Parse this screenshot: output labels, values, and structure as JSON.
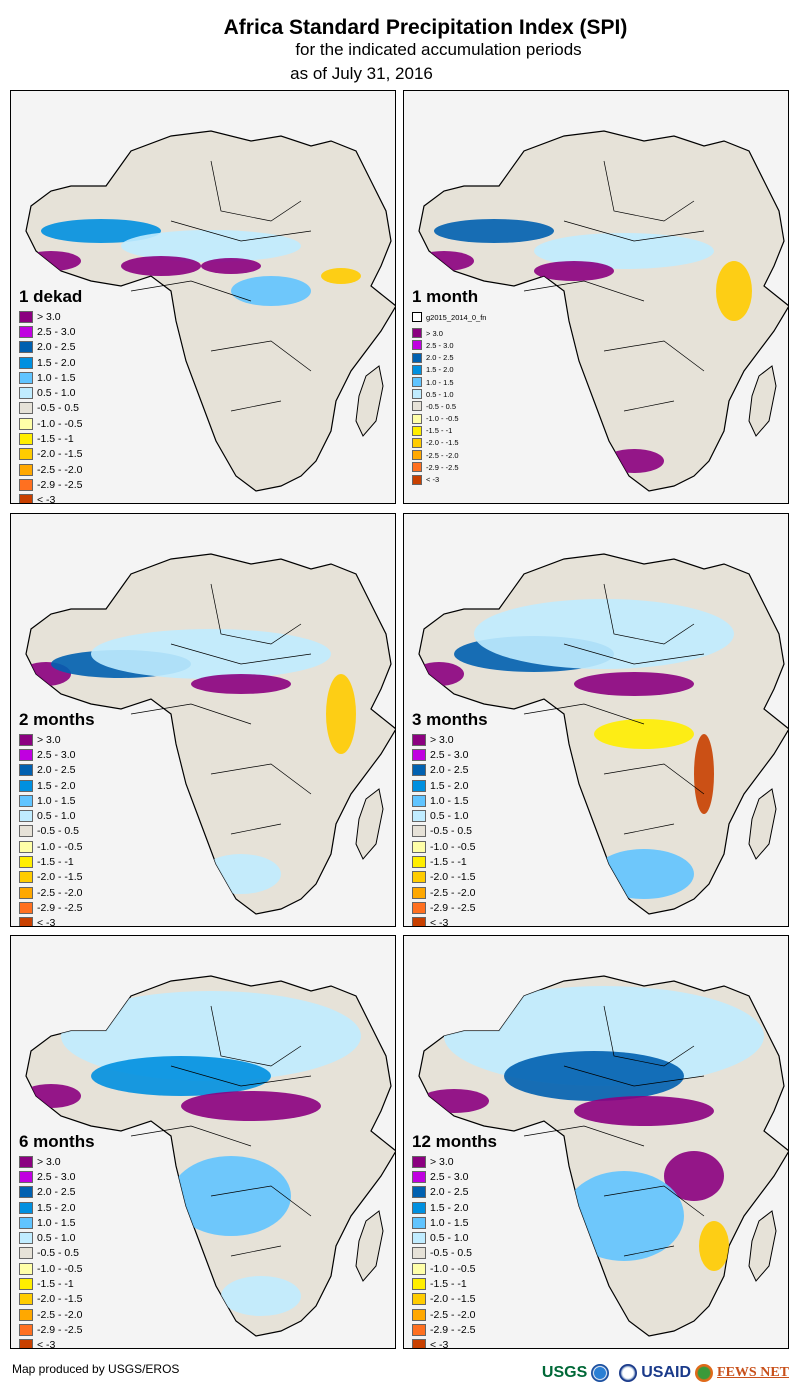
{
  "header": {
    "title": "Africa Standard Precipitation Index (SPI)",
    "subtitle": "for the indicated accumulation periods",
    "date": "as of July 31, 2016"
  },
  "legend_classes": [
    {
      "label": "> 3.0",
      "color": "#8b0080"
    },
    {
      "label": "2.5 - 3.0",
      "color": "#c000e0"
    },
    {
      "label": "2.0 - 2.5",
      "color": "#0060b0"
    },
    {
      "label": "1.5 - 2.0",
      "color": "#0090e0"
    },
    {
      "label": "1.0 - 1.5",
      "color": "#60c4ff"
    },
    {
      "label": "0.5 - 1.0",
      "color": "#c0ecff"
    },
    {
      "label": "-0.5 - 0.5",
      "color": "#e6e2d8"
    },
    {
      "label": "-1.0 - -0.5",
      "color": "#ffffa8"
    },
    {
      "label": "-1.5 - -1",
      "color": "#ffee00"
    },
    {
      "label": "-2.0 - -1.5",
      "color": "#ffcc00"
    },
    {
      "label": "-2.5 - -2.0",
      "color": "#ffa800"
    },
    {
      "label": "-2.9 - -2.5",
      "color": "#ff7020"
    },
    {
      "label": "< -3",
      "color": "#c84000"
    }
  ],
  "panels": [
    {
      "title": "1 dekad"
    },
    {
      "title": "1 month",
      "layer_label": "g2015_2014_0_fn"
    },
    {
      "title": "2 months"
    },
    {
      "title": "3 months"
    },
    {
      "title": "6 months"
    },
    {
      "title": "12 months"
    }
  ],
  "footer": {
    "credit": "Map produced by USGS/EROS",
    "logos": [
      "USGS",
      "NOAA",
      "USAID",
      "FEWS NET"
    ]
  }
}
